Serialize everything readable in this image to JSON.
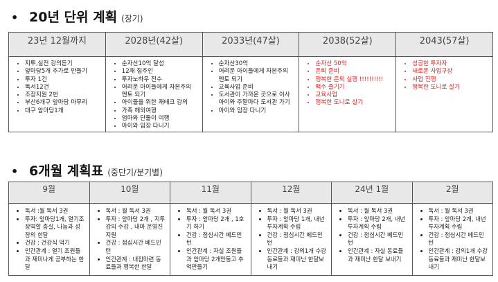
{
  "long_term": {
    "title": "20년 단위 계획",
    "subtitle": "(장기)",
    "columns": [
      {
        "header": "23년 12월까지",
        "items": [
          "지투,실전 강의듣기",
          "앞마당5개 추가로 만들기",
          "투자 1건",
          "독서12건",
          "조장지원 2번",
          "부산6개구 앞마당 마무리",
          "대구 앞마당1개"
        ],
        "highlight": false
      },
      {
        "header": "2028년(42살)",
        "items": [
          "순자산10억 달성",
          "12채 집주인",
          "투자노하우 전수",
          "어려운 아이들에게 자본주의 멘토 되기",
          "아이들을 위한 재테크 강의",
          "가족 해외여행",
          "엄마와 단둘이 여행",
          "아이와 임장 다니기"
        ],
        "highlight": false
      },
      {
        "header": "2033년(47살)",
        "items": [
          "순자산30억",
          "어려운 아이들에게 자본주의 멘토 되기",
          "교육사업 준비",
          "도서관이 가까운 곳으로 이사 아이와 주말마다 도서관 가기",
          "아이와 임장 다니기"
        ],
        "highlight": false
      },
      {
        "header": "2038(52살)",
        "items": [
          "순자산 50억",
          "은퇴 준비",
          "행복한 은퇴 실행 !!!!!!!!!!",
          "백수 즐기기",
          "교육사업",
          "행복한 도니로 살기"
        ],
        "highlight": true
      },
      {
        "header": "2043(57살)",
        "items": [
          "성공한 투자자",
          "새로운 사업구상",
          "사업 진행",
          "행복한 도니로 살기"
        ],
        "highlight": true
      }
    ],
    "highlight_color": "#e0211f"
  },
  "six_month": {
    "title": "6개월 계획표",
    "subtitle": "(중단기/분기별)",
    "columns": [
      {
        "header": "9월",
        "items": [
          "독서 :월 독서 3권",
          "투자: 앞마당1개, 열기조장역할 충실, 나눔과 성장의 한달",
          "건강 : 건강식 먹기",
          "인간관계 : 열기 조원들과 재미나게 공부하는 한달"
        ]
      },
      {
        "header": "10월",
        "items": [
          "독서 : 월 독서 3권",
          "투자 : 앞마당 2개 , 지투 강의 수강 , 내마 운영진 지원",
          "건강 : 점심시간 베드민턴",
          "인간관계 : 내집마련 동료들과 행복한 한달"
        ]
      },
      {
        "header": "11월",
        "items": [
          "독서 : 월 독서 3권",
          "투자 : 앞마당 2개 , 1호기 하기",
          "건강 : 점심시간 베드민턴",
          "인간관계 : 자실 조원들과 앞마당 2개만들고 추억만들기"
        ]
      },
      {
        "header": "12월",
        "items": [
          "독서 : 월 독서 3권",
          "투자 : 앞마당 1개, 내년 투자계획 수립",
          "건강 : 점심시간 베드민턴",
          "인간관계 : 강의1개 수강 동료들과 재미난 한달보내기"
        ]
      },
      {
        "header": "24년 1월",
        "items": [
          "독서 : 월 독서 3권",
          "투자 : 앞마당 2개, 내년 투자계획 수립",
          "건강 : 점심시간 베드민턴",
          "인간관계 : 자실 동료들과 재미난 한달 보내기"
        ]
      },
      {
        "header": "2월",
        "items": [
          "독서 : 월 독서 3권",
          "투자 : 앞마당 2개, 내년 투자계획 수립",
          "건강 : 점심시간 베드민턴",
          "인간관계 : 강의1개 수강 동료들과 재미난 한달보내기"
        ]
      }
    ]
  }
}
